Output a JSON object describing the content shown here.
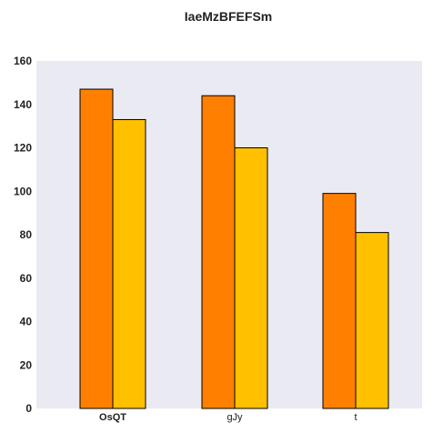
{
  "chart_data": {
    "type": "bar",
    "title": "IaeMzBFEFSm",
    "categories": [
      "OsQT",
      "gJy",
      "t"
    ],
    "category_bold": [
      true,
      false,
      false
    ],
    "series": [
      {
        "values": [
          147,
          144,
          99
        ],
        "color": "#ff8000"
      },
      {
        "values": [
          133,
          120,
          81
        ],
        "color": "#ffc000"
      }
    ],
    "ylim": [
      0,
      160
    ],
    "yticks": [
      0,
      20,
      40,
      60,
      80,
      100,
      120,
      140,
      160
    ],
    "grid": false,
    "plot_background": "#eaeaf2",
    "bar_edge_color": "#000000"
  }
}
